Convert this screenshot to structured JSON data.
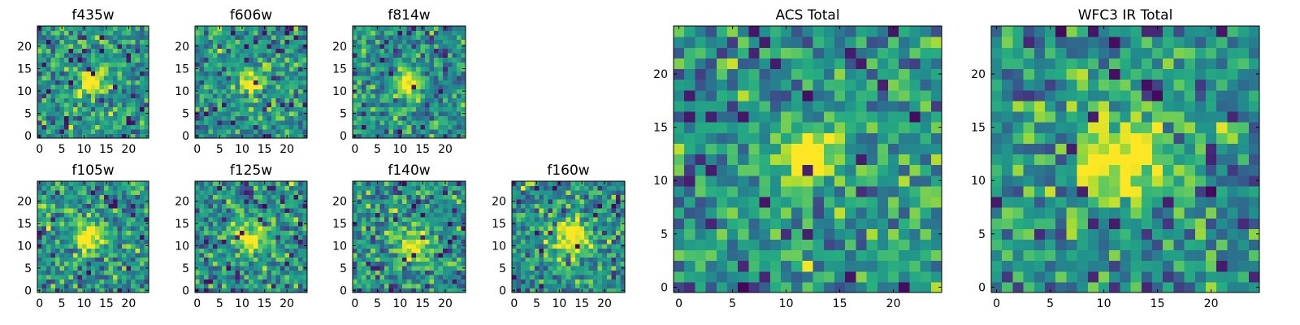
{
  "chart_data": [
    {
      "type": "heatmap",
      "title": "f435w",
      "xlim": [
        -0.5,
        24.5
      ],
      "ylim": [
        -0.5,
        24.5
      ],
      "xticks": [
        0,
        5,
        10,
        15,
        20
      ],
      "yticks": [
        0,
        5,
        10,
        15,
        20
      ],
      "grid": false,
      "grid_size": [
        25,
        25
      ],
      "source_center": [
        12,
        12
      ],
      "source_peak": 0.65,
      "source_sigma": 2.0,
      "noise_seed": 11,
      "colormap": "viridis"
    },
    {
      "type": "heatmap",
      "title": "f606w",
      "xlim": [
        -0.5,
        24.5
      ],
      "ylim": [
        -0.5,
        24.5
      ],
      "xticks": [
        0,
        5,
        10,
        15,
        20
      ],
      "yticks": [
        0,
        5,
        10,
        15,
        20
      ],
      "grid": false,
      "grid_size": [
        25,
        25
      ],
      "source_center": [
        12,
        12
      ],
      "source_peak": 0.7,
      "source_sigma": 1.8,
      "noise_seed": 23,
      "colormap": "viridis"
    },
    {
      "type": "heatmap",
      "title": "f814w",
      "xlim": [
        -0.5,
        24.5
      ],
      "ylim": [
        -0.5,
        24.5
      ],
      "xticks": [
        0,
        5,
        10,
        15,
        20
      ],
      "yticks": [
        0,
        5,
        10,
        15,
        20
      ],
      "grid": false,
      "grid_size": [
        25,
        25
      ],
      "source_center": [
        12,
        12
      ],
      "source_peak": 0.7,
      "source_sigma": 1.8,
      "noise_seed": 37,
      "colormap": "viridis"
    },
    {
      "type": "heatmap",
      "title": "f105w",
      "xlim": [
        -0.5,
        24.5
      ],
      "ylim": [
        -0.5,
        24.5
      ],
      "xticks": [
        0,
        5,
        10,
        15,
        20
      ],
      "yticks": [
        0,
        5,
        10,
        15,
        20
      ],
      "grid": false,
      "grid_size": [
        25,
        25
      ],
      "source_center": [
        11,
        12
      ],
      "source_peak": 0.55,
      "source_sigma": 2.5,
      "noise_seed": 41,
      "colormap": "viridis"
    },
    {
      "type": "heatmap",
      "title": "f125w",
      "xlim": [
        -0.5,
        24.5
      ],
      "ylim": [
        -0.5,
        24.5
      ],
      "xticks": [
        0,
        5,
        10,
        15,
        20
      ],
      "yticks": [
        0,
        5,
        10,
        15,
        20
      ],
      "grid": false,
      "grid_size": [
        25,
        25
      ],
      "source_center": [
        12,
        12
      ],
      "source_peak": 0.5,
      "source_sigma": 2.5,
      "noise_seed": 53,
      "colormap": "viridis"
    },
    {
      "type": "heatmap",
      "title": "f140w",
      "xlim": [
        -0.5,
        24.5
      ],
      "ylim": [
        -0.5,
        24.5
      ],
      "xticks": [
        0,
        5,
        10,
        15,
        20
      ],
      "yticks": [
        0,
        5,
        10,
        15,
        20
      ],
      "grid": false,
      "grid_size": [
        25,
        25
      ],
      "source_center": [
        13,
        10
      ],
      "source_peak": 0.55,
      "source_sigma": 2.5,
      "noise_seed": 67,
      "colormap": "viridis"
    },
    {
      "type": "heatmap",
      "title": "f160w",
      "xlim": [
        -0.5,
        24.5
      ],
      "ylim": [
        -0.5,
        24.5
      ],
      "xticks": [
        0,
        5,
        10,
        15,
        20
      ],
      "yticks": [
        0,
        5,
        10,
        15,
        20
      ],
      "grid": false,
      "grid_size": [
        25,
        25
      ],
      "source_center": [
        13,
        12
      ],
      "source_peak": 0.65,
      "source_sigma": 2.6,
      "noise_seed": 79,
      "colormap": "viridis"
    },
    {
      "type": "heatmap",
      "title": "ACS Total",
      "xlim": [
        -0.5,
        24.5
      ],
      "ylim": [
        -0.5,
        24.5
      ],
      "xticks": [
        0,
        5,
        10,
        15,
        20
      ],
      "yticks": [
        0,
        5,
        10,
        15,
        20
      ],
      "grid": false,
      "grid_size": [
        25,
        25
      ],
      "source_center": [
        12,
        12
      ],
      "source_peak": 0.75,
      "source_sigma": 1.8,
      "noise_seed": 97,
      "colormap": "viridis"
    },
    {
      "type": "heatmap",
      "title": "WFC3 IR Total",
      "xlim": [
        -0.5,
        24.5
      ],
      "ylim": [
        -0.5,
        24.5
      ],
      "xticks": [
        0,
        5,
        10,
        15,
        20
      ],
      "yticks": [
        0,
        5,
        10,
        15,
        20
      ],
      "grid": false,
      "grid_size": [
        25,
        25
      ],
      "source_center": [
        12,
        12
      ],
      "source_peak": 0.55,
      "source_sigma": 2.8,
      "noise_seed": 131,
      "colormap": "viridis"
    }
  ]
}
